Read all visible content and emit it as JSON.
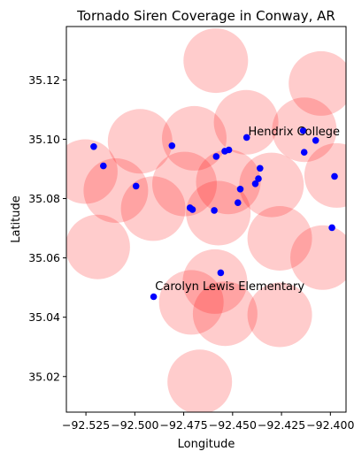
{
  "chart_data": {
    "type": "scatter",
    "title": "Tornado Siren Coverage in Conway, AR",
    "xlabel": "Longitude",
    "ylabel": "Latitude",
    "xlim": [
      -92.535,
      -92.392
    ],
    "ylim": [
      35.008,
      35.138
    ],
    "grid": false,
    "legend": "none",
    "x_ticks": [
      -92.525,
      -92.5,
      -92.475,
      -92.45,
      -92.425,
      -92.4
    ],
    "x_tick_labels": [
      "−92.525",
      "−92.500",
      "−92.475",
      "−92.450",
      "−92.425",
      "−92.400"
    ],
    "y_ticks": [
      35.02,
      35.04,
      35.06,
      35.08,
      35.1,
      35.12
    ],
    "y_tick_labels": [
      "35.02",
      "35.04",
      "35.06",
      "35.08",
      "35.10",
      "35.12"
    ],
    "coverage_color": "#ff0000",
    "coverage_opacity": 0.2,
    "coverage_radius_lon": 0.0165,
    "coverage_areas": [
      {
        "x": -92.4586,
        "y": 35.1265
      },
      {
        "x": -92.4048,
        "y": 35.1188
      },
      {
        "x": -92.4431,
        "y": 35.1057
      },
      {
        "x": -92.4133,
        "y": 35.1032
      },
      {
        "x": -92.4696,
        "y": 35.1003
      },
      {
        "x": -92.4973,
        "y": 35.0993
      },
      {
        "x": -92.5253,
        "y": 35.0891
      },
      {
        "x": -92.5097,
        "y": 35.0827
      },
      {
        "x": -92.4746,
        "y": 35.0849
      },
      {
        "x": -92.4522,
        "y": 35.0856
      },
      {
        "x": -92.4301,
        "y": 35.0846
      },
      {
        "x": -92.3968,
        "y": 35.0878
      },
      {
        "x": -92.4906,
        "y": 35.0766
      },
      {
        "x": -92.4573,
        "y": 35.0751
      },
      {
        "x": -92.519,
        "y": 35.0637
      },
      {
        "x": -92.4259,
        "y": 35.0666
      },
      {
        "x": -92.404,
        "y": 35.0601
      },
      {
        "x": -92.459,
        "y": 35.052
      },
      {
        "x": -92.4711,
        "y": 35.045
      },
      {
        "x": -92.4538,
        "y": 35.0412
      },
      {
        "x": -92.4259,
        "y": 35.0408
      },
      {
        "x": -92.4668,
        "y": 35.0182
      }
    ],
    "point_color": "#0000ff",
    "points": [
      {
        "x": -92.521,
        "y": 35.0975
      },
      {
        "x": -92.5161,
        "y": 35.091
      },
      {
        "x": -92.4994,
        "y": 35.0842
      },
      {
        "x": -92.481,
        "y": 35.0978
      },
      {
        "x": -92.4718,
        "y": 35.0769
      },
      {
        "x": -92.4705,
        "y": 35.0763
      },
      {
        "x": -92.4594,
        "y": 35.076
      },
      {
        "x": -92.4584,
        "y": 35.0942
      },
      {
        "x": -92.454,
        "y": 35.096
      },
      {
        "x": -92.4519,
        "y": 35.0964
      },
      {
        "x": -92.4473,
        "y": 35.0786
      },
      {
        "x": -92.4461,
        "y": 35.0832
      },
      {
        "x": -92.4428,
        "y": 35.1006
      },
      {
        "x": -92.4384,
        "y": 35.085
      },
      {
        "x": -92.4368,
        "y": 35.0867
      },
      {
        "x": -92.436,
        "y": 35.0902
      },
      {
        "x": -92.4139,
        "y": 35.1029
      },
      {
        "x": -92.4134,
        "y": 35.0956
      },
      {
        "x": -92.4075,
        "y": 35.0996
      },
      {
        "x": -92.3992,
        "y": 35.0702
      },
      {
        "x": -92.3979,
        "y": 35.0875
      },
      {
        "x": -92.4561,
        "y": 35.055
      },
      {
        "x": -92.4904,
        "y": 35.0469
      }
    ],
    "annotations": [
      {
        "text": "Hendrix College",
        "x": -92.442,
        "y": 35.1013
      },
      {
        "text": "Carolyn Lewis Elementary",
        "x": -92.4896,
        "y": 35.0492
      }
    ]
  }
}
